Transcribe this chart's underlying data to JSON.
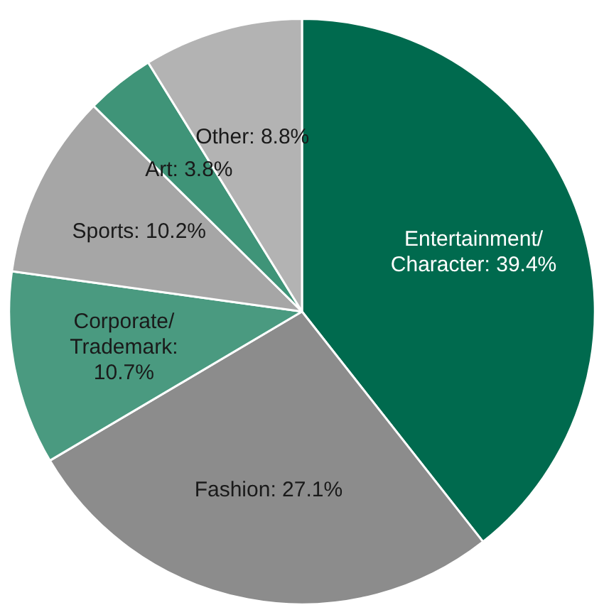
{
  "chart_data": {
    "type": "pie",
    "categories": [
      "Entertainment/Character: 39.4%",
      "Fashion: 27.1%",
      "Corporate/Trademark: 10.7%",
      "Sports: 10.2%",
      "Art: 3.8%",
      "Other: 8.8%"
    ],
    "values": [
      39.4,
      27.1,
      10.7,
      10.2,
      3.8,
      8.8
    ],
    "colors": [
      "#006a4e",
      "#8c8c8c",
      "#4a9a80",
      "#a6a6a6",
      "#3f9478",
      "#b3b3b3"
    ]
  }
}
